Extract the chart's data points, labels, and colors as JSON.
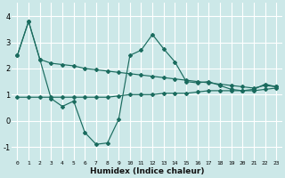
{
  "xlabel": "Humidex (Indice chaleur)",
  "background_color": "#cce8e8",
  "grid_color": "#ffffff",
  "line_color": "#1a6b5e",
  "xlim": [
    -0.5,
    23.5
  ],
  "ylim": [
    -1.5,
    4.5
  ],
  "xticks": [
    0,
    1,
    2,
    3,
    4,
    5,
    6,
    7,
    8,
    9,
    10,
    11,
    12,
    13,
    14,
    15,
    16,
    17,
    18,
    19,
    20,
    21,
    22,
    23
  ],
  "yticks": [
    -1,
    0,
    1,
    2,
    3,
    4
  ],
  "curve1_x": [
    0,
    1,
    2,
    3,
    4,
    5,
    6,
    7,
    8,
    9,
    10,
    11,
    12,
    13,
    14,
    15,
    16,
    17,
    18,
    19,
    20,
    21,
    22,
    23
  ],
  "curve1_y": [
    2.5,
    3.8,
    2.35,
    0.85,
    0.55,
    0.75,
    -0.45,
    -0.9,
    -0.85,
    0.05,
    2.5,
    2.7,
    3.3,
    2.75,
    2.25,
    1.5,
    1.45,
    1.5,
    1.35,
    1.2,
    1.15,
    1.2,
    1.4,
    1.3
  ],
  "curve2_x": [
    0,
    1,
    2,
    3,
    4,
    5,
    6,
    7,
    8,
    9,
    10,
    11,
    12,
    13,
    14,
    15,
    16,
    17,
    18,
    19,
    20,
    21,
    22,
    23
  ],
  "curve2_y": [
    2.5,
    3.8,
    2.35,
    2.2,
    2.15,
    2.1,
    2.0,
    1.95,
    1.9,
    1.85,
    1.8,
    1.75,
    1.7,
    1.65,
    1.6,
    1.55,
    1.5,
    1.45,
    1.4,
    1.35,
    1.3,
    1.25,
    1.35,
    1.3
  ],
  "curve3_x": [
    0,
    1,
    2,
    3,
    4,
    5,
    6,
    7,
    8,
    9,
    10,
    11,
    12,
    13,
    14,
    15,
    16,
    17,
    18,
    19,
    20,
    21,
    22,
    23
  ],
  "curve3_y": [
    0.9,
    0.9,
    0.9,
    0.9,
    0.9,
    0.9,
    0.9,
    0.9,
    0.9,
    0.95,
    1.0,
    1.0,
    1.0,
    1.05,
    1.05,
    1.05,
    1.1,
    1.15,
    1.15,
    1.15,
    1.15,
    1.15,
    1.2,
    1.25
  ]
}
